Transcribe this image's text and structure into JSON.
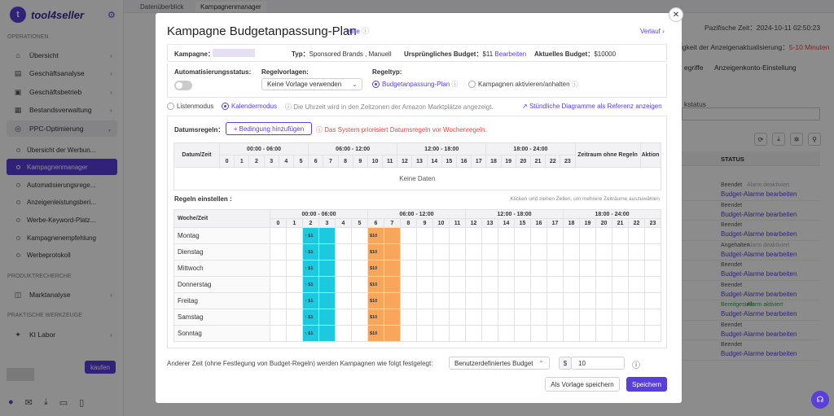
{
  "app": {
    "name": "tool4seller"
  },
  "tabs": [
    "Datenüberblick",
    "Kampagnenmanager"
  ],
  "sidebar": {
    "sections": [
      "OPERATIONEN",
      "PRODUKTRECHERCHE",
      "PRAKTISCHE WERKZEUGE"
    ],
    "items": [
      {
        "label": "Übersicht",
        "icon": "home-icon"
      },
      {
        "label": "Geschäftsanalyse",
        "icon": "chart-icon"
      },
      {
        "label": "Geschäftsbetrieb",
        "icon": "briefcase-icon"
      },
      {
        "label": "Bestandsverwaltung",
        "icon": "box-icon"
      },
      {
        "label": "PPC-Optimierung",
        "icon": "target-icon"
      }
    ],
    "subitems": [
      "Übersicht der Werbun...",
      "Kampagnenmanager",
      "Automatisierungsrege...",
      "Anzeigenleistungsberi...",
      "Werbe-Keyword-Platz...",
      "Kampagnenempfehlung",
      "Werbeprotokoll"
    ],
    "research_items": [
      {
        "label": "Marktanalyse",
        "icon": "market-icon"
      }
    ],
    "tool_items": [
      {
        "label": "KI Labor",
        "icon": "ai-icon"
      }
    ],
    "buy_label": "kaufen"
  },
  "background": {
    "time": "Pazifische Zeit：2024-10-11 02:50:23",
    "warning": "igkeit der Anzeigenaktualisierung：",
    "warning_value": "5-10 Minuten",
    "tabs": [
      "egriffe",
      "Anzeigenkonto-Einstellung"
    ],
    "filter_label": "kstatus",
    "status_header": "STATUS",
    "left_cut": "gen",
    "row_status": [
      "Beendet",
      "Beendet",
      "Beendet",
      "Angehalten",
      "Beendet",
      "Beendet",
      "Bereitgestellt",
      "Beendet",
      "Beendet"
    ],
    "row_alarm": [
      "Alarm deaktiviert",
      "",
      "",
      "Alarm deaktiviert",
      "",
      "",
      "Alarm aktiviert",
      "",
      ""
    ],
    "row_link": "Budget-Alarme bearbeiten"
  },
  "modal": {
    "title": "Kampagne Budgetanpassung-Plan",
    "help": "Hilfe",
    "history": "Verlauf",
    "campaign_label": "Kampagne：",
    "type_label": "Typ：",
    "type_value": "Sponsored Brands , Manuell",
    "orig_budget_label": "Ursprüngliches Budget：",
    "orig_budget_value": "$11",
    "edit_label": "Bearbeiten",
    "cur_budget_label": "Aktuelles Budget：",
    "cur_budget_value": "$10000",
    "auto_status_label": "Automatisierungsstatus:",
    "templates_label": "Regelvorlagen:",
    "template_value": "Keine Vorlage verwenden",
    "rule_type_label": "Regeltyp:",
    "rule_type_opt1": "Budgetanpassung-Plan",
    "rule_type_opt2": "Kampagnen aktivieren/anhalten",
    "mode_list": "Listenmodus",
    "mode_calendar": "Kalendermodus",
    "tz_note": "Die Uhrzeit wird in den Zeitzonen der Amazon Marktplätze angezeigt.",
    "hourly_link": "Stündliche Diagramme als Referenz anzeigen",
    "date_rules_label": "Datumsregeln：",
    "add_condition": "+ Bedingung hinzufügen",
    "priority_note": "Das System priorisiert Datumsregeln vor Wochenregeln.",
    "date_table": {
      "col_date": "Datum/Zeit",
      "groups": [
        "00:00 - 06:00",
        "06:00 - 12:00",
        "12:00 - 18:00",
        "18:00 - 24:00"
      ],
      "hours": [
        "0",
        "1",
        "2",
        "3",
        "4",
        "5",
        "6",
        "7",
        "8",
        "9",
        "10",
        "11",
        "12",
        "13",
        "14",
        "15",
        "16",
        "17",
        "18",
        "19",
        "20",
        "21",
        "22",
        "23"
      ],
      "col_range": "Zeitraum ohne Regeln",
      "col_action": "Aktion",
      "empty": "Keine Daten"
    },
    "rules_label": "Regeln einstellen :",
    "drag_hint": "Klicken und ziehen Zellen, um mehrere Zeiträume auszuwählen",
    "week_table": {
      "col_week": "Woche/Zeit",
      "days": [
        "Montag",
        "Dienstag",
        "Mittwoch",
        "Donnerstag",
        "Freitag",
        "Samstag",
        "Sonntag"
      ],
      "cyan_note": "↑ $1",
      "orange_note": "$10"
    },
    "other_time_label": "Anderer Zeit (ohne Festlegung von Budget-Regeln) werden Kampagnen wie folgt festgelegt:",
    "other_select": "Benutzerdefiniertes Budget",
    "currency": "$",
    "other_value": "10",
    "save_template": "Als Vorlage speichern",
    "save": "Speichern"
  },
  "colors": {
    "accent": "#5b3fd9",
    "cyan": "#1cc9de",
    "orange": "#f7a65c",
    "red": "#e04848"
  }
}
